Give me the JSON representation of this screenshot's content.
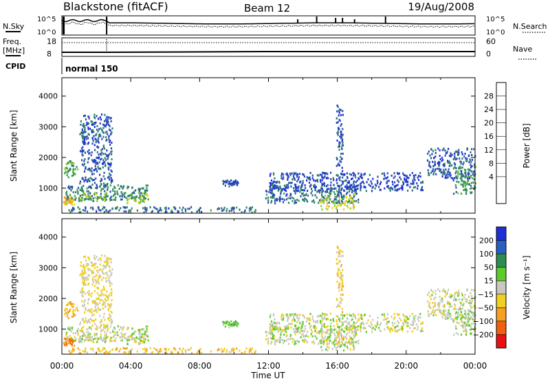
{
  "header": {
    "title": "Blackstone (fitACF)",
    "beam": "Beam 12",
    "date": "19/Aug/2008"
  },
  "strip1": {
    "left_label": "N.Sky",
    "right_label": "N.Search",
    "tick_top": "10^5",
    "tick_bottom": "10^0"
  },
  "strip2": {
    "left_label_1": "Freq.",
    "left_label_2": "[MHz]",
    "right_label": "Nave",
    "left_ticks": [
      "18",
      "8"
    ],
    "right_ticks": [
      "60",
      "0"
    ]
  },
  "strip3": {
    "left_label": "CPID",
    "value_label": "normal 150"
  },
  "x_axis": {
    "label": "Time UT",
    "ticks": [
      "00:00",
      "04:00",
      "08:00",
      "12:00",
      "16:00",
      "20:00",
      "00:00"
    ]
  },
  "panels": {
    "power": {
      "ylabel": "Slant Range [km]",
      "yticks": [
        "4000",
        "3000",
        "2000",
        "1000"
      ],
      "colorbar_label": "Power [dB]",
      "colorbar_ticks": [
        "28",
        "24",
        "20",
        "16",
        "12",
        "8",
        "4"
      ]
    },
    "velocity": {
      "ylabel": "Slant Range [km]",
      "yticks": [
        "4000",
        "3000",
        "2000",
        "1000"
      ],
      "colorbar_label": "Velocity [m s⁻¹]",
      "colorbar_ticks": [
        "200",
        "100",
        "50",
        "15",
        "−15",
        "−50",
        "−100",
        "−200"
      ]
    }
  },
  "chart_data": {
    "type": "heatmap",
    "x_range_hours": [
      0,
      24
    ],
    "y_range_km": [
      180,
      4600
    ],
    "power_colors": [
      "#1f2fd8",
      "#2a4fb0",
      "#2e7e6a",
      "#3aa04a",
      "#8fcd2a",
      "#f0d020",
      "#f5a020",
      "#f06010",
      "#e81010"
    ],
    "power_levels": [
      0,
      4,
      8,
      12,
      16,
      20,
      24,
      28,
      32
    ],
    "velocity_colors": [
      "#1f2fd8",
      "#2a5ec0",
      "#2e8e50",
      "#5ccb2c",
      "#c8c8c0",
      "#f0d020",
      "#f5a020",
      "#f06010",
      "#e81010"
    ],
    "velocity_levels": [
      250,
      200,
      100,
      50,
      15,
      -15,
      -50,
      -100,
      -200,
      -250
    ],
    "echo_regions": [
      {
        "t0": 0.05,
        "t1": 0.9,
        "r0": 1350,
        "r1": 1900,
        "power": 14,
        "velocity": -60
      },
      {
        "t0": 0.05,
        "t1": 0.7,
        "r0": 450,
        "r1": 700,
        "power": 24,
        "velocity": -90
      },
      {
        "t0": 0.2,
        "t1": 5.0,
        "r0": 600,
        "r1": 1100,
        "power": 10,
        "velocity": 0
      },
      {
        "t0": 0.8,
        "t1": 2.6,
        "r0": 550,
        "r1": 850,
        "power": 16,
        "velocity": -5
      },
      {
        "t0": 3.5,
        "t1": 5.0,
        "r0": 500,
        "r1": 850,
        "power": 18,
        "velocity": 5
      },
      {
        "t0": 1.0,
        "t1": 2.9,
        "r0": 1000,
        "r1": 3400,
        "power": 6,
        "velocity": -20
      },
      {
        "t0": 0.3,
        "t1": 11.5,
        "r0": 200,
        "r1": 380,
        "power": 8,
        "velocity": -40
      },
      {
        "t0": 11.8,
        "t1": 17.2,
        "r0": 500,
        "r1": 1100,
        "power": 8,
        "velocity": 0
      },
      {
        "t0": 15.0,
        "t1": 17.0,
        "r0": 300,
        "r1": 800,
        "power": 20,
        "velocity": 5
      },
      {
        "t0": 15.9,
        "t1": 16.3,
        "r0": 500,
        "r1": 3700,
        "power": 6,
        "velocity": -30
      },
      {
        "t0": 12.0,
        "t1": 21.0,
        "r0": 900,
        "r1": 1500,
        "power": 5,
        "velocity": 0
      },
      {
        "t0": 21.2,
        "t1": 24.0,
        "r0": 1300,
        "r1": 2300,
        "power": 6,
        "velocity": 0
      },
      {
        "t0": 22.7,
        "t1": 24.0,
        "r0": 800,
        "r1": 1700,
        "power": 12,
        "velocity": 5
      },
      {
        "t0": 9.3,
        "t1": 10.2,
        "r0": 1050,
        "r1": 1250,
        "power": 6,
        "velocity": 30
      }
    ]
  }
}
